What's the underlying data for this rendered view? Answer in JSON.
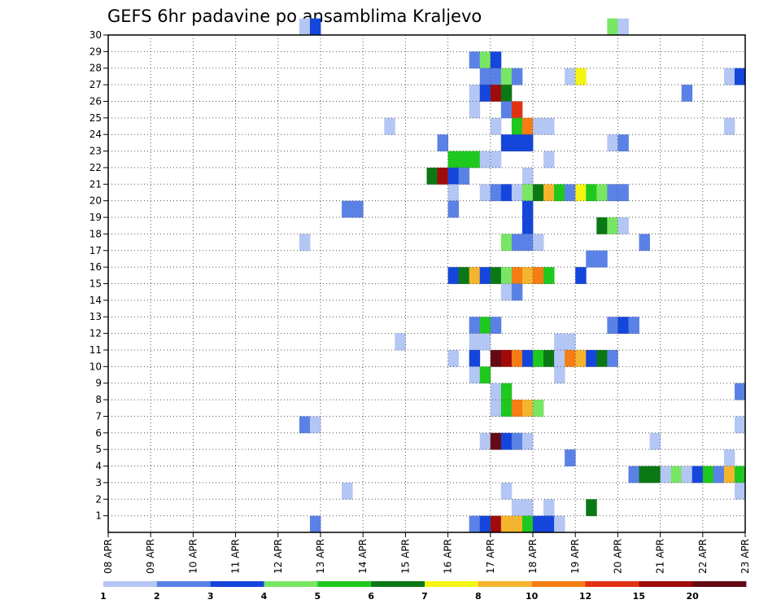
{
  "chart_data": {
    "type": "heatmap",
    "title": "GEFS 6hr padavine po ansamblima Kraljevo",
    "x_ticks": [
      "08 APR",
      "09 APR",
      "10 APR",
      "11 APR",
      "12 APR",
      "13 APR",
      "14 APR",
      "15 APR",
      "16 APR",
      "17 APR",
      "18 APR",
      "19 APR",
      "20 APR",
      "21 APR",
      "22 APR",
      "23 APR"
    ],
    "y_ticks": [
      "1",
      "2",
      "3",
      "4",
      "5",
      "6",
      "7",
      "8",
      "9",
      "10",
      "11",
      "12",
      "13",
      "14",
      "15",
      "16",
      "17",
      "18",
      "19",
      "20",
      "21",
      "22",
      "23",
      "24",
      "25",
      "26",
      "27",
      "28",
      "29",
      "30"
    ],
    "x_range": [
      "08 APR 00Z",
      "23 APR 00Z"
    ],
    "y_range": [
      0,
      30
    ],
    "step_hours": 6,
    "grid": true,
    "colorbar": {
      "labels": [
        "1",
        "2",
        "3",
        "4",
        "5",
        "6",
        "7",
        "8",
        "10",
        "12",
        "15",
        "20"
      ],
      "colors": [
        "#b4c6f4",
        "#5a82e6",
        "#1446dc",
        "#78e664",
        "#1ec81e",
        "#0a7814",
        "#f5f514",
        "#f5b42d",
        "#f57d14",
        "#e13214",
        "#a00a0a",
        "#640a14"
      ]
    },
    "cells": [
      {
        "m": 30,
        "t": "12 APR 12Z",
        "v": 1
      },
      {
        "m": 30,
        "t": "12 APR 18Z",
        "v": 3
      },
      {
        "m": 30,
        "t": "19 APR 18Z",
        "v": 4
      },
      {
        "m": 30,
        "t": "20 APR 00Z",
        "v": 1
      },
      {
        "m": 28,
        "t": "16 APR 12Z",
        "v": 2
      },
      {
        "m": 28,
        "t": "16 APR 18Z",
        "v": 4
      },
      {
        "m": 28,
        "t": "17 APR 00Z",
        "v": 3
      },
      {
        "m": 27,
        "t": "16 APR 18Z",
        "v": 2
      },
      {
        "m": 27,
        "t": "17 APR 00Z",
        "v": 2
      },
      {
        "m": 27,
        "t": "17 APR 06Z",
        "v": 4
      },
      {
        "m": 27,
        "t": "17 APR 12Z",
        "v": 2
      },
      {
        "m": 27,
        "t": "18 APR 18Z",
        "v": 1
      },
      {
        "m": 27,
        "t": "19 APR 00Z",
        "v": 7
      },
      {
        "m": 27,
        "t": "22 APR 12Z",
        "v": 1
      },
      {
        "m": 27,
        "t": "22 APR 18Z",
        "v": 3
      },
      {
        "m": 26,
        "t": "16 APR 12Z",
        "v": 1
      },
      {
        "m": 26,
        "t": "16 APR 18Z",
        "v": 3
      },
      {
        "m": 26,
        "t": "17 APR 00Z",
        "v": 15
      },
      {
        "m": 26,
        "t": "17 APR 06Z",
        "v": 6
      },
      {
        "m": 26,
        "t": "21 APR 12Z",
        "v": 2
      },
      {
        "m": 25,
        "t": "16 APR 12Z",
        "v": 1
      },
      {
        "m": 25,
        "t": "17 APR 06Z",
        "v": 2
      },
      {
        "m": 25,
        "t": "17 APR 12Z",
        "v": 12
      },
      {
        "m": 24,
        "t": "14 APR 12Z",
        "v": 1
      },
      {
        "m": 24,
        "t": "17 APR 00Z",
        "v": 1
      },
      {
        "m": 24,
        "t": "17 APR 12Z",
        "v": 5
      },
      {
        "m": 24,
        "t": "17 APR 18Z",
        "v": 10
      },
      {
        "m": 24,
        "t": "18 APR 00Z",
        "v": 1
      },
      {
        "m": 24,
        "t": "18 APR 06Z",
        "v": 1
      },
      {
        "m": 24,
        "t": "22 APR 12Z",
        "v": 1
      },
      {
        "m": 23,
        "t": "15 APR 18Z",
        "v": 2
      },
      {
        "m": 23,
        "t": "17 APR 06Z",
        "v": 3
      },
      {
        "m": 23,
        "t": "17 APR 12Z",
        "v": 3
      },
      {
        "m": 23,
        "t": "17 APR 18Z",
        "v": 3
      },
      {
        "m": 23,
        "t": "19 APR 18Z",
        "v": 1
      },
      {
        "m": 23,
        "t": "20 APR 00Z",
        "v": 2
      },
      {
        "m": 22,
        "t": "16 APR 00Z",
        "v": 5
      },
      {
        "m": 22,
        "t": "16 APR 06Z",
        "v": 5
      },
      {
        "m": 22,
        "t": "16 APR 12Z",
        "v": 5
      },
      {
        "m": 22,
        "t": "16 APR 18Z",
        "v": 1
      },
      {
        "m": 22,
        "t": "17 APR 00Z",
        "v": 1
      },
      {
        "m": 22,
        "t": "18 APR 06Z",
        "v": 1
      },
      {
        "m": 21,
        "t": "15 APR 12Z",
        "v": 6
      },
      {
        "m": 21,
        "t": "15 APR 18Z",
        "v": 15
      },
      {
        "m": 21,
        "t": "16 APR 00Z",
        "v": 3
      },
      {
        "m": 21,
        "t": "16 APR 06Z",
        "v": 2
      },
      {
        "m": 21,
        "t": "17 APR 18Z",
        "v": 1
      },
      {
        "m": 20,
        "t": "16 APR 00Z",
        "v": 1
      },
      {
        "m": 20,
        "t": "16 APR 18Z",
        "v": 1
      },
      {
        "m": 20,
        "t": "17 APR 00Z",
        "v": 2
      },
      {
        "m": 20,
        "t": "17 APR 06Z",
        "v": 3
      },
      {
        "m": 20,
        "t": "17 APR 12Z",
        "v": 1
      },
      {
        "m": 20,
        "t": "17 APR 18Z",
        "v": 4
      },
      {
        "m": 20,
        "t": "18 APR 00Z",
        "v": 6
      },
      {
        "m": 20,
        "t": "18 APR 06Z",
        "v": 8
      },
      {
        "m": 20,
        "t": "18 APR 12Z",
        "v": 5
      },
      {
        "m": 20,
        "t": "18 APR 18Z",
        "v": 2
      },
      {
        "m": 20,
        "t": "19 APR 00Z",
        "v": 7
      },
      {
        "m": 20,
        "t": "19 APR 06Z",
        "v": 5
      },
      {
        "m": 20,
        "t": "19 APR 12Z",
        "v": 4
      },
      {
        "m": 20,
        "t": "19 APR 18Z",
        "v": 2
      },
      {
        "m": 20,
        "t": "20 APR 00Z",
        "v": 2
      },
      {
        "m": 19,
        "t": "13 APR 12Z",
        "v": 2
      },
      {
        "m": 19,
        "t": "13 APR 18Z",
        "v": 2
      },
      {
        "m": 19,
        "t": "16 APR 00Z",
        "v": 2
      },
      {
        "m": 19,
        "t": "17 APR 18Z",
        "v": 3
      },
      {
        "m": 18,
        "t": "17 APR 18Z",
        "v": 3
      },
      {
        "m": 18,
        "t": "19 APR 12Z",
        "v": 6
      },
      {
        "m": 18,
        "t": "19 APR 18Z",
        "v": 4
      },
      {
        "m": 18,
        "t": "20 APR 00Z",
        "v": 1
      },
      {
        "m": 17,
        "t": "12 APR 12Z",
        "v": 1
      },
      {
        "m": 17,
        "t": "17 APR 06Z",
        "v": 4
      },
      {
        "m": 17,
        "t": "17 APR 12Z",
        "v": 2
      },
      {
        "m": 17,
        "t": "17 APR 18Z",
        "v": 2
      },
      {
        "m": 17,
        "t": "18 APR 00Z",
        "v": 1
      },
      {
        "m": 17,
        "t": "20 APR 12Z",
        "v": 2
      },
      {
        "m": 16,
        "t": "19 APR 06Z",
        "v": 2
      },
      {
        "m": 16,
        "t": "19 APR 12Z",
        "v": 2
      },
      {
        "m": 15,
        "t": "16 APR 00Z",
        "v": 3
      },
      {
        "m": 15,
        "t": "16 APR 06Z",
        "v": 6
      },
      {
        "m": 15,
        "t": "16 APR 12Z",
        "v": 8
      },
      {
        "m": 15,
        "t": "16 APR 18Z",
        "v": 3
      },
      {
        "m": 15,
        "t": "17 APR 00Z",
        "v": 6
      },
      {
        "m": 15,
        "t": "17 APR 06Z",
        "v": 4
      },
      {
        "m": 15,
        "t": "17 APR 12Z",
        "v": 10
      },
      {
        "m": 15,
        "t": "17 APR 18Z",
        "v": 8
      },
      {
        "m": 15,
        "t": "18 APR 00Z",
        "v": 10
      },
      {
        "m": 15,
        "t": "18 APR 06Z",
        "v": 5
      },
      {
        "m": 15,
        "t": "19 APR 00Z",
        "v": 3
      },
      {
        "m": 14,
        "t": "17 APR 06Z",
        "v": 1
      },
      {
        "m": 14,
        "t": "17 APR 12Z",
        "v": 2
      },
      {
        "m": 12,
        "t": "16 APR 12Z",
        "v": 2
      },
      {
        "m": 12,
        "t": "16 APR 18Z",
        "v": 5
      },
      {
        "m": 12,
        "t": "17 APR 00Z",
        "v": 2
      },
      {
        "m": 12,
        "t": "19 APR 18Z",
        "v": 2
      },
      {
        "m": 12,
        "t": "20 APR 00Z",
        "v": 3
      },
      {
        "m": 12,
        "t": "20 APR 06Z",
        "v": 2
      },
      {
        "m": 11,
        "t": "14 APR 18Z",
        "v": 1
      },
      {
        "m": 11,
        "t": "16 APR 12Z",
        "v": 1
      },
      {
        "m": 11,
        "t": "16 APR 18Z",
        "v": 1
      },
      {
        "m": 11,
        "t": "18 APR 12Z",
        "v": 1
      },
      {
        "m": 11,
        "t": "18 APR 18Z",
        "v": 1
      },
      {
        "m": 10,
        "t": "16 APR 00Z",
        "v": 1
      },
      {
        "m": 10,
        "t": "16 APR 12Z",
        "v": 3
      },
      {
        "m": 10,
        "t": "17 APR 00Z",
        "v": 20
      },
      {
        "m": 10,
        "t": "17 APR 06Z",
        "v": 15
      },
      {
        "m": 10,
        "t": "17 APR 12Z",
        "v": 10
      },
      {
        "m": 10,
        "t": "17 APR 18Z",
        "v": 3
      },
      {
        "m": 10,
        "t": "18 APR 00Z",
        "v": 5
      },
      {
        "m": 10,
        "t": "18 APR 06Z",
        "v": 6
      },
      {
        "m": 10,
        "t": "18 APR 12Z",
        "v": 1
      },
      {
        "m": 10,
        "t": "18 APR 18Z",
        "v": 10
      },
      {
        "m": 10,
        "t": "19 APR 00Z",
        "v": 8
      },
      {
        "m": 10,
        "t": "19 APR 06Z",
        "v": 3
      },
      {
        "m": 10,
        "t": "19 APR 12Z",
        "v": 6
      },
      {
        "m": 10,
        "t": "19 APR 18Z",
        "v": 2
      },
      {
        "m": 9,
        "t": "16 APR 12Z",
        "v": 1
      },
      {
        "m": 9,
        "t": "16 APR 18Z",
        "v": 5
      },
      {
        "m": 9,
        "t": "18 APR 12Z",
        "v": 1
      },
      {
        "m": 8,
        "t": "17 APR 00Z",
        "v": 1
      },
      {
        "m": 8,
        "t": "17 APR 06Z",
        "v": 5
      },
      {
        "m": 8,
        "t": "22 APR 18Z",
        "v": 2
      },
      {
        "m": 7,
        "t": "17 APR 00Z",
        "v": 1
      },
      {
        "m": 7,
        "t": "17 APR 06Z",
        "v": 5
      },
      {
        "m": 7,
        "t": "17 APR 12Z",
        "v": 10
      },
      {
        "m": 7,
        "t": "17 APR 18Z",
        "v": 8
      },
      {
        "m": 7,
        "t": "18 APR 00Z",
        "v": 4
      },
      {
        "m": 6,
        "t": "12 APR 12Z",
        "v": 2
      },
      {
        "m": 6,
        "t": "12 APR 18Z",
        "v": 1
      },
      {
        "m": 6,
        "t": "22 APR 18Z",
        "v": 1
      },
      {
        "m": 5,
        "t": "16 APR 18Z",
        "v": 1
      },
      {
        "m": 5,
        "t": "17 APR 00Z",
        "v": 20
      },
      {
        "m": 5,
        "t": "17 APR 06Z",
        "v": 3
      },
      {
        "m": 5,
        "t": "17 APR 12Z",
        "v": 2
      },
      {
        "m": 5,
        "t": "17 APR 18Z",
        "v": 1
      },
      {
        "m": 5,
        "t": "20 APR 18Z",
        "v": 1
      },
      {
        "m": 4,
        "t": "18 APR 18Z",
        "v": 2
      },
      {
        "m": 4,
        "t": "22 APR 12Z",
        "v": 1
      },
      {
        "m": 3,
        "t": "20 APR 06Z",
        "v": 2
      },
      {
        "m": 3,
        "t": "20 APR 12Z",
        "v": 6
      },
      {
        "m": 3,
        "t": "20 APR 18Z",
        "v": 6
      },
      {
        "m": 3,
        "t": "21 APR 00Z",
        "v": 1
      },
      {
        "m": 3,
        "t": "21 APR 06Z",
        "v": 4
      },
      {
        "m": 3,
        "t": "21 APR 12Z",
        "v": 1
      },
      {
        "m": 3,
        "t": "21 APR 18Z",
        "v": 3
      },
      {
        "m": 3,
        "t": "22 APR 00Z",
        "v": 5
      },
      {
        "m": 3,
        "t": "22 APR 06Z",
        "v": 2
      },
      {
        "m": 3,
        "t": "22 APR 12Z",
        "v": 8
      },
      {
        "m": 3,
        "t": "22 APR 18Z",
        "v": 5
      },
      {
        "m": 2,
        "t": "13 APR 12Z",
        "v": 1
      },
      {
        "m": 2,
        "t": "17 APR 06Z",
        "v": 1
      },
      {
        "m": 2,
        "t": "22 APR 18Z",
        "v": 1
      },
      {
        "m": 1,
        "t": "17 APR 12Z",
        "v": 1
      },
      {
        "m": 1,
        "t": "17 APR 18Z",
        "v": 1
      },
      {
        "m": 1,
        "t": "18 APR 06Z",
        "v": 1
      },
      {
        "m": 1,
        "t": "19 APR 06Z",
        "v": 6
      },
      {
        "m": 0,
        "t": "12 APR 18Z",
        "v": 2
      },
      {
        "m": 0,
        "t": "16 APR 12Z",
        "v": 2
      },
      {
        "m": 0,
        "t": "16 APR 18Z",
        "v": 3
      },
      {
        "m": 0,
        "t": "17 APR 00Z",
        "v": 15
      },
      {
        "m": 0,
        "t": "17 APR 06Z",
        "v": 8
      },
      {
        "m": 0,
        "t": "17 APR 12Z",
        "v": 8
      },
      {
        "m": 0,
        "t": "17 APR 18Z",
        "v": 5
      },
      {
        "m": 0,
        "t": "18 APR 00Z",
        "v": 3
      },
      {
        "m": 0,
        "t": "18 APR 06Z",
        "v": 3
      },
      {
        "m": 0,
        "t": "18 APR 12Z",
        "v": 1
      }
    ]
  }
}
